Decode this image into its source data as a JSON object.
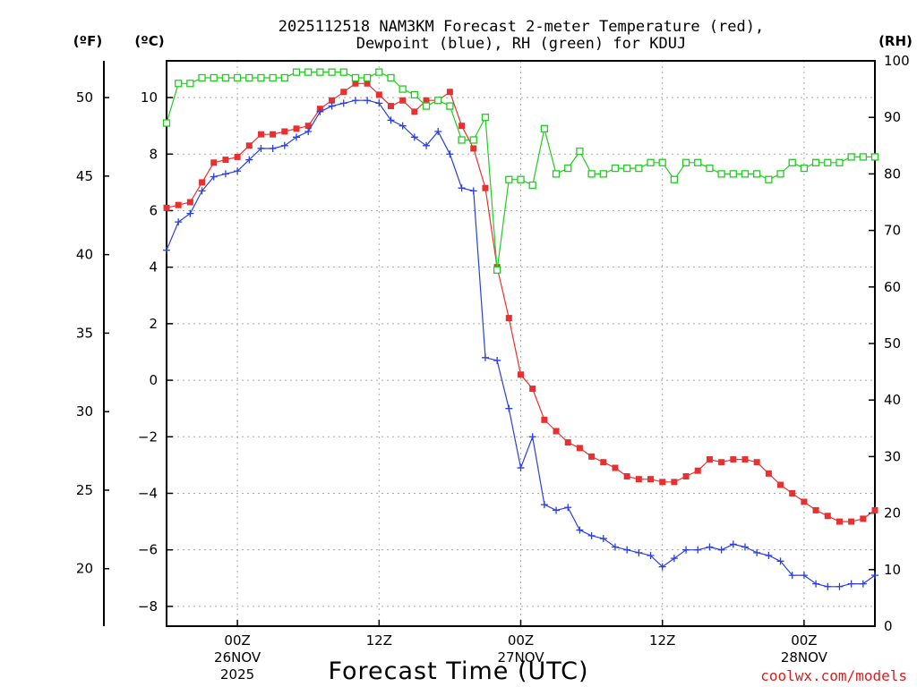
{
  "chart_data": {
    "type": "line",
    "title_line1": "2025112518 NAM3KM Forecast 2-meter Temperature (red),",
    "title_line2": "Dewpoint (blue), RH (green) for KDUJ",
    "xlabel": "Forecast Time (UTC)",
    "credit": "coolwx.com/models",
    "left_unit_f": "(ºF)",
    "left_unit_c": "(ºC)",
    "right_unit": "(RH)",
    "x_unit": "hour",
    "xlim": [
      0,
      60
    ],
    "ylim_c": [
      -8.7,
      11.3
    ],
    "rh_lim": [
      0,
      100
    ],
    "x_ticks": [
      {
        "x": 6,
        "line1": "00Z",
        "line2": "26NOV",
        "line3": "2025"
      },
      {
        "x": 18,
        "line1": "12Z",
        "line2": "",
        "line3": ""
      },
      {
        "x": 30,
        "line1": "00Z",
        "line2": "27NOV",
        "line3": ""
      },
      {
        "x": 42,
        "line1": "12Z",
        "line2": "",
        "line3": ""
      },
      {
        "x": 54,
        "line1": "00Z",
        "line2": "28NOV",
        "line3": ""
      }
    ],
    "c_ticks": [
      {
        "v": 10,
        "label": "10"
      },
      {
        "v": 8,
        "label": "8"
      },
      {
        "v": 6,
        "label": "6"
      },
      {
        "v": 4,
        "label": "4"
      },
      {
        "v": 2,
        "label": "2"
      },
      {
        "v": 0,
        "label": "0"
      },
      {
        "v": -2,
        "label": "−2"
      },
      {
        "v": -4,
        "label": "−4"
      },
      {
        "v": -6,
        "label": "−6"
      },
      {
        "v": -8,
        "label": "−8"
      }
    ],
    "f_ticks": [
      {
        "v": 50,
        "label": "50"
      },
      {
        "v": 45,
        "label": "45"
      },
      {
        "v": 40,
        "label": "40"
      },
      {
        "v": 35,
        "label": "35"
      },
      {
        "v": 30,
        "label": "30"
      },
      {
        "v": 25,
        "label": "25"
      },
      {
        "v": 20,
        "label": "20"
      }
    ],
    "rh_ticks": [
      {
        "v": 100,
        "label": "100"
      },
      {
        "v": 90,
        "label": "90"
      },
      {
        "v": 80,
        "label": "80"
      },
      {
        "v": 70,
        "label": "70"
      },
      {
        "v": 60,
        "label": "60"
      },
      {
        "v": 50,
        "label": "50"
      },
      {
        "v": 40,
        "label": "40"
      },
      {
        "v": 30,
        "label": "30"
      },
      {
        "v": 20,
        "label": "20"
      },
      {
        "v": 10,
        "label": "10"
      },
      {
        "v": 0,
        "label": "0"
      }
    ],
    "x": [
      0,
      1,
      2,
      3,
      4,
      5,
      6,
      7,
      8,
      9,
      10,
      11,
      12,
      13,
      14,
      15,
      16,
      17,
      18,
      19,
      20,
      21,
      22,
      23,
      24,
      25,
      26,
      27,
      28,
      29,
      30,
      31,
      32,
      33,
      34,
      35,
      36,
      37,
      38,
      39,
      40,
      41,
      42,
      43,
      44,
      45,
      46,
      47,
      48,
      49,
      50,
      51,
      52,
      53,
      54,
      55,
      56,
      57,
      58,
      59,
      60
    ],
    "series": [
      {
        "name": "Temperature",
        "unit": "°C",
        "color": "#e83030",
        "marker": "filled-square",
        "values": [
          6.1,
          6.2,
          6.3,
          7.0,
          7.7,
          7.8,
          7.9,
          8.3,
          8.7,
          8.7,
          8.8,
          8.9,
          9.0,
          9.6,
          9.9,
          10.2,
          10.5,
          10.5,
          10.1,
          9.7,
          9.9,
          9.5,
          9.9,
          9.9,
          10.2,
          9.0,
          8.2,
          6.8,
          4.0,
          2.2,
          0.2,
          -0.3,
          -1.4,
          -1.8,
          -2.2,
          -2.4,
          -2.7,
          -2.9,
          -3.1,
          -3.4,
          -3.5,
          -3.5,
          -3.6,
          -3.6,
          -3.4,
          -3.2,
          -2.8,
          -2.9,
          -2.8,
          -2.8,
          -2.9,
          -3.3,
          -3.7,
          -4.0,
          -4.3,
          -4.6,
          -4.8,
          -5.0,
          -5.0,
          -4.9,
          -4.6
        ]
      },
      {
        "name": "Dewpoint",
        "unit": "°C",
        "color": "#2a3fe0",
        "marker": "plus",
        "values": [
          4.6,
          5.6,
          5.9,
          6.7,
          7.2,
          7.3,
          7.4,
          7.8,
          8.2,
          8.2,
          8.3,
          8.6,
          8.8,
          9.5,
          9.7,
          9.8,
          9.9,
          9.9,
          9.8,
          9.2,
          9.0,
          8.6,
          8.3,
          8.8,
          8.0,
          6.8,
          6.7,
          0.8,
          0.7,
          -1.0,
          -3.1,
          -2.0,
          -4.4,
          -4.6,
          -4.5,
          -5.3,
          -5.5,
          -5.6,
          -5.9,
          -6.0,
          -6.1,
          -6.2,
          -6.6,
          -6.3,
          -6.0,
          -6.0,
          -5.9,
          -6.0,
          -5.8,
          -5.9,
          -6.1,
          -6.2,
          -6.4,
          -6.9,
          -6.9,
          -7.2,
          -7.3,
          -7.3,
          -7.2,
          -7.2,
          -6.9
        ]
      },
      {
        "name": "RH",
        "unit": "%",
        "color": "#22cc22",
        "marker": "open-square",
        "values": [
          89,
          96,
          96,
          97,
          97,
          97,
          97,
          97,
          97,
          97,
          97,
          98,
          98,
          98,
          98,
          98,
          97,
          97,
          98,
          97,
          95,
          94,
          92,
          93,
          92,
          86,
          86,
          90,
          63,
          79,
          79,
          78,
          88,
          80,
          81,
          84,
          80,
          80,
          81,
          81,
          81,
          82,
          82,
          79,
          82,
          82,
          81,
          80,
          80,
          80,
          80,
          79,
          80,
          82,
          81,
          82,
          82,
          82,
          83,
          83,
          83
        ]
      }
    ]
  }
}
